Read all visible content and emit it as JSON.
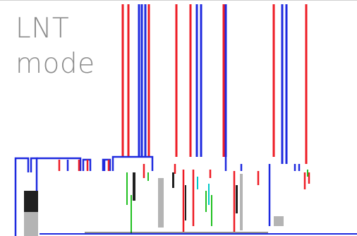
{
  "overlay": {
    "line1": "LNT",
    "line2": "mode"
  },
  "colors": {
    "background": "#ffffff",
    "red": "#ee1c25",
    "blue": "#1e2adf",
    "green": "#20c020",
    "cyan": "#00c8c8",
    "dark": "#202020",
    "gray": "#b4b4b4",
    "label": "#8c8c8c"
  }
}
